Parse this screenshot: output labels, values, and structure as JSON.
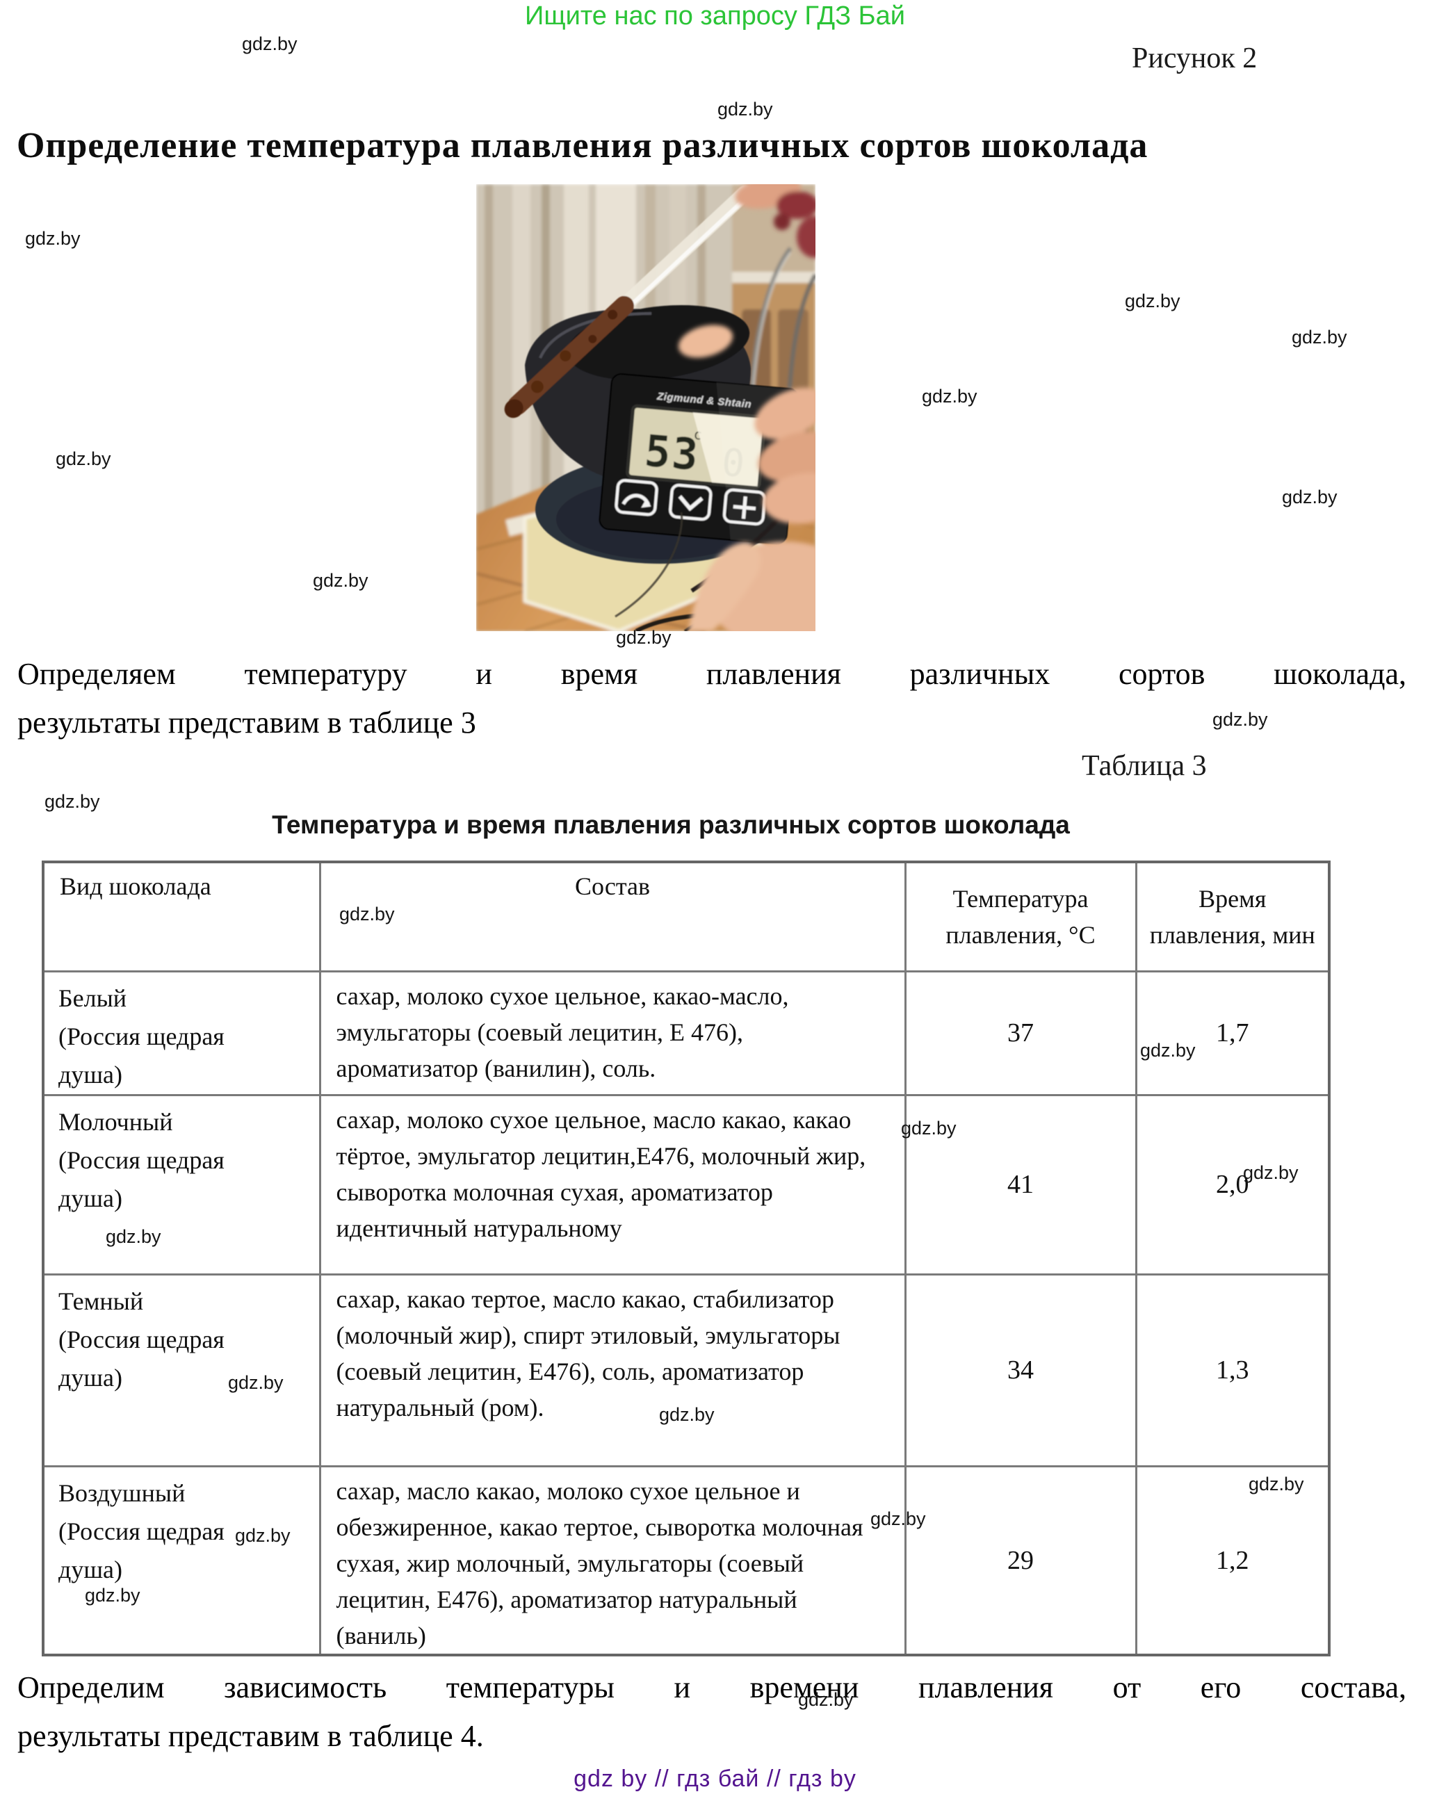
{
  "page": {
    "promo_banner": "Ищите нас по запросу ГДЗ Бай",
    "figure_label": "Рисунок 2",
    "title": "Определение температура плавления различных сортов шоколада",
    "watermark": "gdz.by",
    "paragraph1": {
      "line1": "Определяем температуру и время плавления различных сортов шоколада,",
      "line2": "результаты представим в таблице 3"
    },
    "table_label": "Таблица 3",
    "table_caption": "Температура и время плавления различных сортов шоколада",
    "paragraph2": {
      "line1": "Определим зависимость температуры и времени плавления от его состава,",
      "line2": "результаты представим в таблице 4."
    },
    "footer_links": "gdz by // гдз бай // гдз by"
  },
  "photo": {
    "description": "Digital thermometer measuring melting chocolate over a black bowl on a kitchen table",
    "thermometer_brand": "Zigmund & Shtain",
    "display_value": "53",
    "display_unit": "c"
  },
  "table": {
    "headers": [
      "Вид шоколада",
      "Состав",
      "Температура плавления, °С",
      "Время плавления, мин"
    ],
    "rows": [
      {
        "kind_lines": [
          "Белый",
          "(Россия щедрая",
          "душа)"
        ],
        "composition": "сахар, молоко сухое цельное, какао-масло, эмульгаторы (соевый лецитин, Е 476), ароматизатор (ванилин), соль.",
        "melt_temp_c": "37",
        "melt_time_min": "1,7"
      },
      {
        "kind_lines": [
          "Молочный",
          "(Россия щедрая",
          "душа)"
        ],
        "composition": "сахар, молоко сухое цельное, масло какао, какао тёртое, эмульгатор лецитин,Е476, молочный жир, сыворотка молочная сухая, ароматизатор идентичный натуральному",
        "melt_temp_c": "41",
        "melt_time_min": "2,0"
      },
      {
        "kind_lines": [
          "Темный",
          "(Россия щедрая",
          "душа)"
        ],
        "composition": "сахар, какао тертое, масло какао, стабилизатор (молочный жир), спирт этиловый, эмульгаторы (соевый лецитин, Е476), соль, ароматизатор натуральный (ром).",
        "melt_temp_c": "34",
        "melt_time_min": "1,3"
      },
      {
        "kind_lines": [
          "Воздушный",
          "(Россия щедрая",
          "душа)"
        ],
        "composition": "сахар, масло какао, молоко сухое цельное и обезжиренное, какао тертое, сыворотка молочная сухая, жир молочный, эмульгаторы (соевый лецитин, Е476), ароматизатор натуральный (ваниль)",
        "melt_temp_c": "29",
        "melt_time_min": "1,2"
      }
    ]
  },
  "colors": {
    "banner_green": "#2BC437",
    "footer_purple": "#53148F",
    "table_border": "#7A7A7A"
  }
}
